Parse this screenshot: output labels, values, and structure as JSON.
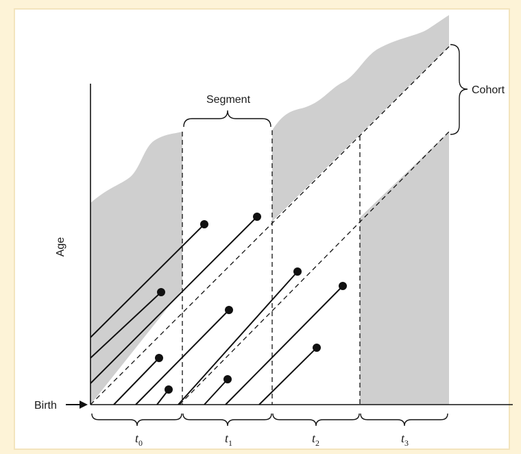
{
  "diagram": {
    "y_axis_label": "Age",
    "birth_label": "Birth",
    "segment_label": "Segment",
    "cohort_label": "Cohort",
    "periods": [
      {
        "base": "t",
        "sub": "0"
      },
      {
        "base": "t",
        "sub": "1"
      },
      {
        "base": "t",
        "sub": "2"
      },
      {
        "base": "t",
        "sub": "3"
      }
    ]
  },
  "colors": {
    "shade": "#cfcfcf",
    "ink": "#111111",
    "background": "#fdf3d7"
  }
}
